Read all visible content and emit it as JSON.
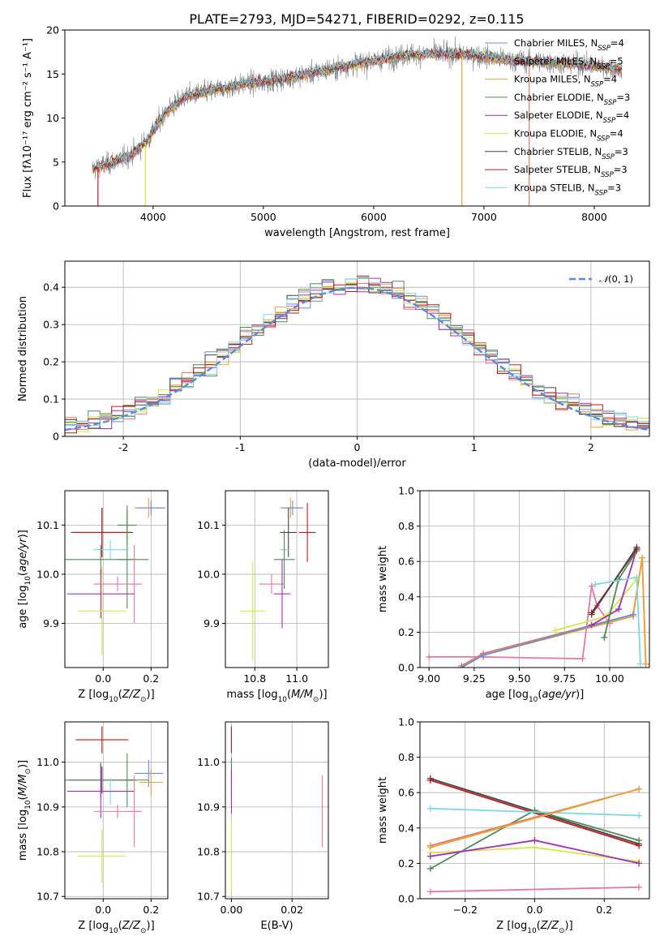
{
  "figure_title": "PLATE=2793, MJD=54271, FIBERID=0292, z=0.115",
  "colors": {
    "chabrier_miles": "#6b8fd6",
    "salpeter_miles": "#e27a66",
    "kroupa_miles": "#e8a23b",
    "chabrier_elodie": "#4f8a57",
    "salpeter_elodie": "#a030b8",
    "kroupa_elodie": "#d7e64a",
    "chabrier_stelib": "#444444",
    "salpeter_stelib": "#c0181c",
    "kroupa_stelib": "#7fd6e6",
    "pink": "#e477a8",
    "normal_curve": "#5a8ad8",
    "data_spectrum": "#808080"
  },
  "chart_data": [
    {
      "id": "spectrum",
      "type": "line",
      "title": "PLATE=2793, MJD=54271, FIBERID=0292, z=0.115",
      "xlabel": "wavelength [Angstrom, rest frame]",
      "ylabel": "Flux [fλ10⁻¹⁷ erg cm⁻² s⁻¹ A⁻¹]",
      "xlim": [
        3200,
        8500
      ],
      "ylim": [
        0,
        20
      ],
      "xticks": [
        4000,
        5000,
        6000,
        7000,
        8000
      ],
      "yticks": [
        0,
        5,
        10,
        15,
        20
      ],
      "legend_position": "upper-right",
      "continuum": {
        "x": [
          3450,
          3600,
          3800,
          3950,
          4100,
          4300,
          4500,
          4800,
          5100,
          5400,
          5700,
          6000,
          6300,
          6600,
          6900,
          7200,
          7500,
          7800,
          8100,
          8250
        ],
        "y": [
          4.2,
          4.8,
          5.8,
          7.5,
          10.5,
          12.5,
          13.0,
          13.8,
          14.3,
          15.0,
          15.8,
          16.5,
          17.2,
          17.3,
          17.2,
          16.6,
          16.4,
          16.2,
          15.8,
          15.5
        ]
      },
      "series": [
        {
          "name": "Chabrier MILES, N_SSP=4",
          "color_key": "chabrier_miles"
        },
        {
          "name": "Salpeter MILES, N_SSP=5",
          "color_key": "salpeter_miles"
        },
        {
          "name": "Kroupa MILES, N_SSP=4",
          "color_key": "kroupa_miles"
        },
        {
          "name": "Chabrier ELODIE, N_SSP=3",
          "color_key": "chabrier_elodie"
        },
        {
          "name": "Salpeter ELODIE, N_SSP=4",
          "color_key": "salpeter_elodie"
        },
        {
          "name": "Kroupa ELODIE, N_SSP=4",
          "color_key": "kroupa_elodie"
        },
        {
          "name": "Chabrier STELIB, N_SSP=3",
          "color_key": "chabrier_stelib"
        },
        {
          "name": "Salpeter STELIB, N_SSP=3",
          "color_key": "salpeter_stelib"
        },
        {
          "name": "Kroupa STELIB, N_SSP=3",
          "color_key": "kroupa_stelib"
        }
      ],
      "legend": [
        {
          "prefix": "Chabrier MILES, N",
          "sub": "SSP",
          "suffix": "=4",
          "color_key": "chabrier_miles"
        },
        {
          "prefix": "Salpeter MILES, N",
          "sub": "SSP",
          "suffix": "=5",
          "color_key": "salpeter_miles"
        },
        {
          "prefix": "Kroupa MILES, N",
          "sub": "SSP",
          "suffix": "=4",
          "color_key": "kroupa_miles"
        },
        {
          "prefix": "Chabrier ELODIE, N",
          "sub": "SSP",
          "suffix": "=3",
          "color_key": "chabrier_elodie"
        },
        {
          "prefix": "Salpeter ELODIE, N",
          "sub": "SSP",
          "suffix": "=4",
          "color_key": "salpeter_elodie"
        },
        {
          "prefix": "Kroupa ELODIE, N",
          "sub": "SSP",
          "suffix": "=4",
          "color_key": "kroupa_elodie"
        },
        {
          "prefix": "Chabrier STELIB, N",
          "sub": "SSP",
          "suffix": "=3",
          "color_key": "chabrier_stelib"
        },
        {
          "prefix": "Salpeter STELIB, N",
          "sub": "SSP",
          "suffix": "=3",
          "color_key": "salpeter_stelib"
        },
        {
          "prefix": "Kroupa STELIB, N",
          "sub": "SSP",
          "suffix": "=3",
          "color_key": "kroupa_stelib"
        }
      ],
      "vertical_lines": [
        {
          "x": 3500,
          "color_key": "salpeter_stelib"
        },
        {
          "x": 3930,
          "color_key": "kroupa_elodie"
        },
        {
          "x": 6800,
          "color_key": "kroupa_miles"
        },
        {
          "x": 7410,
          "color_key": "salpeter_miles"
        }
      ]
    },
    {
      "id": "residuals",
      "type": "histogram",
      "xlabel": "(data-model)/error",
      "ylabel": "Normed distribution",
      "xlim": [
        -2.5,
        2.5
      ],
      "ylim": [
        0,
        0.47
      ],
      "xticks": [
        -2,
        -1,
        0,
        1,
        2
      ],
      "yticks": [
        0.0,
        0.1,
        0.2,
        0.3,
        0.4
      ],
      "grid": true,
      "legend_position": "upper-right",
      "reference_curve": {
        "name": "N(0,1)",
        "color_key": "normal_curve",
        "mean": 0,
        "sigma": 1
      },
      "bin_width": 0.1,
      "bin_start": -2.5,
      "series_color_keys": [
        "chabrier_miles",
        "salpeter_miles",
        "kroupa_miles",
        "chabrier_elodie",
        "salpeter_elodie",
        "kroupa_elodie",
        "chabrier_stelib",
        "salpeter_stelib",
        "kroupa_stelib"
      ]
    },
    {
      "id": "age_vs_Z",
      "type": "errorbar",
      "xlabel": "Z [log10(Z/Z⊙)]",
      "ylabel": "age  [log10(age/yr)]",
      "xlim": [
        -0.16,
        0.27
      ],
      "ylim": [
        9.81,
        10.17
      ],
      "xticks": [
        0.0,
        0.2
      ],
      "xtick_labels": [
        "0.0",
        "0.2"
      ],
      "yticks": [
        9.9,
        10.0,
        10.1
      ],
      "ytick_labels": [
        "9.9",
        "10.0",
        "10.1"
      ],
      "grid": true,
      "points": [
        {
          "x": 0.19,
          "y": 10.135,
          "xerr": 0.06,
          "yerr": 0.02,
          "color_key": "kroupa_miles"
        },
        {
          "x": 0.2,
          "y": 10.135,
          "xerr": 0.06,
          "yerr": 0.015,
          "color_key": "chabrier_miles"
        },
        {
          "x": -0.005,
          "y": 10.085,
          "xerr": 0.13,
          "yerr": 0.05,
          "color_key": "chabrier_stelib"
        },
        {
          "x": -0.005,
          "y": 10.085,
          "xerr": 0.12,
          "yerr": 0.05,
          "color_key": "salpeter_stelib"
        },
        {
          "x": 0.03,
          "y": 10.05,
          "xerr": 0.07,
          "yerr": 0.02,
          "color_key": "kroupa_stelib"
        },
        {
          "x": -0.01,
          "y": 10.03,
          "xerr": 0.2,
          "yerr": 0.03,
          "color_key": "chabrier_elodie"
        },
        {
          "x": 0.1,
          "y": 10.03,
          "xerr": 0.04,
          "yerr": 0.1,
          "color_key": "chabrier_elodie"
        },
        {
          "x": 0.06,
          "y": 9.98,
          "xerr": 0.1,
          "yerr": 0.015,
          "color_key": "pink"
        },
        {
          "x": 0.13,
          "y": 9.98,
          "xerr": 0.03,
          "yerr": 0.08,
          "color_key": "pink"
        },
        {
          "x": -0.01,
          "y": 9.96,
          "xerr": 0.14,
          "yerr": 0.05,
          "color_key": "salpeter_elodie"
        },
        {
          "x": -0.005,
          "y": 9.925,
          "xerr": 0.1,
          "yerr": 0.09,
          "color_key": "kroupa_elodie"
        },
        {
          "x": 0.1,
          "y": 10.1,
          "xerr": 0.04,
          "yerr": 0.04,
          "color_key": "chabrier_elodie"
        }
      ]
    },
    {
      "id": "age_vs_mass",
      "type": "errorbar",
      "xlabel": "mass [log10(M/M⊙)]",
      "ylabel": "",
      "xlim": [
        10.66,
        11.15
      ],
      "ylim": [
        9.81,
        10.17
      ],
      "xticks": [
        10.8,
        11.0
      ],
      "xtick_labels": [
        "10.8",
        "11.0"
      ],
      "yticks": [
        9.9,
        10.0,
        10.1
      ],
      "ytick_labels": [
        "9.9",
        "10.0",
        "10.1"
      ],
      "grid": true,
      "points": [
        {
          "x": 10.97,
          "y": 10.135,
          "xerr": 0.05,
          "yerr": 0.02,
          "color_key": "kroupa_miles"
        },
        {
          "x": 10.98,
          "y": 10.135,
          "xerr": 0.05,
          "yerr": 0.015,
          "color_key": "chabrier_miles"
        },
        {
          "x": 11.05,
          "y": 10.085,
          "xerr": 0.04,
          "yerr": 0.06,
          "color_key": "salpeter_stelib"
        },
        {
          "x": 10.96,
          "y": 10.085,
          "xerr": 0.04,
          "yerr": 0.05,
          "color_key": "chabrier_stelib"
        },
        {
          "x": 10.94,
          "y": 10.05,
          "xerr": 0.02,
          "yerr": 0.02,
          "color_key": "kroupa_stelib"
        },
        {
          "x": 10.94,
          "y": 10.03,
          "xerr": 0.05,
          "yerr": 0.06,
          "color_key": "chabrier_elodie"
        },
        {
          "x": 10.88,
          "y": 9.98,
          "xerr": 0.06,
          "yerr": 0.02,
          "color_key": "pink"
        },
        {
          "x": 10.93,
          "y": 9.96,
          "xerr": 0.04,
          "yerr": 0.07,
          "color_key": "salpeter_elodie"
        },
        {
          "x": 10.79,
          "y": 9.925,
          "xerr": 0.06,
          "yerr": 0.1,
          "color_key": "kroupa_elodie"
        }
      ]
    },
    {
      "id": "mass_weight_vs_age",
      "type": "line",
      "xlabel": "age  [log10(age/yr)]",
      "ylabel": "mass weight",
      "xlim": [
        8.95,
        10.22
      ],
      "ylim": [
        0.0,
        1.0
      ],
      "xticks": [
        9.0,
        9.25,
        9.5,
        9.75,
        10.0
      ],
      "xtick_labels": [
        "9.00",
        "9.25",
        "9.50",
        "9.75",
        "10.00"
      ],
      "yticks": [
        0.0,
        0.2,
        0.4,
        0.6,
        0.8,
        1.0
      ],
      "ytick_labels": [
        "0.0",
        "0.2",
        "0.4",
        "0.6",
        "0.8",
        "1.0"
      ],
      "grid": true,
      "series": [
        {
          "color_key": "pink",
          "x": [
            9.0,
            9.3,
            9.85,
            9.9,
            9.93,
            10.0
          ],
          "y": [
            0.06,
            0.06,
            0.05,
            0.46,
            0.35,
            0.25
          ]
        },
        {
          "color_key": "salpeter_miles",
          "x": [
            9.18,
            9.3,
            10.13,
            10.18,
            10.2
          ],
          "y": [
            0.01,
            0.08,
            0.3,
            0.62,
            0.02
          ]
        },
        {
          "color_key": "kroupa_miles",
          "x": [
            9.18,
            9.3,
            10.13,
            10.18,
            10.2
          ],
          "y": [
            0.0,
            0.07,
            0.29,
            0.62,
            0.02
          ]
        },
        {
          "color_key": "chabrier_miles",
          "x": [
            9.18,
            9.3,
            10.13
          ],
          "y": [
            0.0,
            0.07,
            0.3
          ]
        },
        {
          "color_key": "kroupa_elodie",
          "x": [
            9.7,
            9.98,
            10.15
          ],
          "y": [
            0.21,
            0.29,
            0.5
          ]
        },
        {
          "color_key": "salpeter_elodie",
          "x": [
            9.9,
            10.05,
            10.15
          ],
          "y": [
            0.24,
            0.33,
            0.67
          ]
        },
        {
          "color_key": "chabrier_elodie",
          "x": [
            9.97,
            10.05,
            10.15
          ],
          "y": [
            0.17,
            0.5,
            0.66
          ]
        },
        {
          "color_key": "salpeter_stelib",
          "x": [
            9.9,
            10.15
          ],
          "y": [
            0.31,
            0.67
          ]
        },
        {
          "color_key": "chabrier_stelib",
          "x": [
            9.9,
            10.15
          ],
          "y": [
            0.3,
            0.68
          ]
        },
        {
          "color_key": "kroupa_stelib",
          "x": [
            9.92,
            10.15,
            10.17
          ],
          "y": [
            0.47,
            0.51,
            0.02
          ]
        }
      ]
    },
    {
      "id": "mass_vs_Z",
      "type": "errorbar",
      "xlabel": "Z [log10(Z/Z⊙)]",
      "ylabel": "mass [log10(M/M⊙)]",
      "xlim": [
        -0.16,
        0.27
      ],
      "ylim": [
        10.695,
        11.09
      ],
      "xticks": [
        0.0,
        0.2
      ],
      "xtick_labels": [
        "0.0",
        "0.2"
      ],
      "yticks": [
        10.7,
        10.8,
        10.9,
        11.0
      ],
      "ytick_labels": [
        "10.7",
        "10.8",
        "10.9",
        "11.0"
      ],
      "grid": true,
      "points": [
        {
          "x": -0.005,
          "y": 11.05,
          "xerr": 0.11,
          "yerr": 0.03,
          "color_key": "salpeter_stelib"
        },
        {
          "x": 0.19,
          "y": 10.975,
          "xerr": 0.06,
          "yerr": 0.03,
          "color_key": "chabrier_miles"
        },
        {
          "x": 0.2,
          "y": 10.955,
          "xerr": 0.05,
          "yerr": 0.03,
          "color_key": "kroupa_miles"
        },
        {
          "x": -0.005,
          "y": 10.96,
          "xerr": 0.14,
          "yerr": 0.03,
          "color_key": "chabrier_stelib"
        },
        {
          "x": -0.01,
          "y": 10.96,
          "xerr": 0.2,
          "yerr": 0.04,
          "color_key": "chabrier_elodie"
        },
        {
          "x": 0.1,
          "y": 10.96,
          "xerr": 0.04,
          "yerr": 0.06,
          "color_key": "chabrier_elodie"
        },
        {
          "x": 0.03,
          "y": 10.935,
          "xerr": 0.07,
          "yerr": 0.03,
          "color_key": "kroupa_stelib"
        },
        {
          "x": -0.01,
          "y": 10.935,
          "xerr": 0.14,
          "yerr": 0.06,
          "color_key": "salpeter_elodie"
        },
        {
          "x": 0.06,
          "y": 10.89,
          "xerr": 0.1,
          "yerr": 0.015,
          "color_key": "pink"
        },
        {
          "x": 0.13,
          "y": 10.89,
          "xerr": 0.03,
          "yerr": 0.08,
          "color_key": "pink"
        },
        {
          "x": -0.005,
          "y": 10.79,
          "xerr": 0.1,
          "yerr": 0.06,
          "color_key": "kroupa_elodie"
        }
      ]
    },
    {
      "id": "mass_vs_ebv",
      "type": "errorbar",
      "xlabel": "E(B-V)",
      "ylabel": "",
      "xlim": [
        -0.002,
        0.032
      ],
      "ylim": [
        10.695,
        11.09
      ],
      "xticks": [
        0.0,
        0.02
      ],
      "xtick_labels": [
        "0.00",
        "0.02"
      ],
      "yticks": [
        10.7,
        10.8,
        10.9,
        11.0
      ],
      "ytick_labels": [
        "10.7",
        "10.8",
        "10.9",
        "11.0"
      ],
      "grid": true,
      "points": [
        {
          "x": 0.0,
          "y": 11.05,
          "xerr": 0.0,
          "yerr": 0.03,
          "color_key": "salpeter_stelib"
        },
        {
          "x": 0.0,
          "y": 10.975,
          "xerr": 0.0,
          "yerr": 0.03,
          "color_key": "chabrier_miles"
        },
        {
          "x": 0.0,
          "y": 10.96,
          "xerr": 0.0,
          "yerr": 0.05,
          "color_key": "chabrier_elodie"
        },
        {
          "x": 0.0,
          "y": 10.935,
          "xerr": 0.0,
          "yerr": 0.05,
          "color_key": "salpeter_elodie"
        },
        {
          "x": 0.0,
          "y": 10.79,
          "xerr": 0.0,
          "yerr": 0.08,
          "color_key": "kroupa_elodie"
        },
        {
          "x": 0.03,
          "y": 10.89,
          "xerr": 0.0,
          "yerr": 0.08,
          "color_key": "pink"
        }
      ]
    },
    {
      "id": "mass_weight_vs_Z",
      "type": "line",
      "xlabel": "Z [log10(Z/Z⊙)]",
      "ylabel": "mass weight",
      "xlim": [
        -0.33,
        0.33
      ],
      "ylim": [
        0.0,
        1.0
      ],
      "xticks": [
        -0.2,
        0.0,
        0.2
      ],
      "xtick_labels": [
        "−0.2",
        "0.0",
        "0.2"
      ],
      "yticks": [
        0.0,
        0.2,
        0.4,
        0.6,
        0.8,
        1.0
      ],
      "ytick_labels": [
        "0.0",
        "0.2",
        "0.4",
        "0.6",
        "0.8",
        "1.0"
      ],
      "grid": true,
      "series": [
        {
          "color_key": "chabrier_stelib",
          "x": [
            -0.3,
            0.3
          ],
          "y": [
            0.68,
            0.31
          ]
        },
        {
          "color_key": "salpeter_stelib",
          "x": [
            -0.3,
            0.3
          ],
          "y": [
            0.67,
            0.3
          ]
        },
        {
          "color_key": "chabrier_elodie",
          "x": [
            -0.3,
            0.0,
            0.3
          ],
          "y": [
            0.17,
            0.5,
            0.33
          ]
        },
        {
          "color_key": "kroupa_stelib",
          "x": [
            -0.3,
            0.3
          ],
          "y": [
            0.51,
            0.47
          ]
        },
        {
          "color_key": "salpeter_miles",
          "x": [
            -0.3,
            0.3
          ],
          "y": [
            0.3,
            0.62
          ]
        },
        {
          "color_key": "kroupa_miles",
          "x": [
            -0.3,
            0.3
          ],
          "y": [
            0.29,
            0.62
          ]
        },
        {
          "color_key": "kroupa_elodie",
          "x": [
            -0.3,
            0.0,
            0.3
          ],
          "y": [
            0.26,
            0.29,
            0.21
          ]
        },
        {
          "color_key": "salpeter_elodie",
          "x": [
            -0.3,
            0.0,
            0.3
          ],
          "y": [
            0.24,
            0.33,
            0.2
          ]
        },
        {
          "color_key": "pink",
          "x": [
            -0.3,
            0.3
          ],
          "y": [
            0.04,
            0.065
          ]
        }
      ]
    }
  ]
}
